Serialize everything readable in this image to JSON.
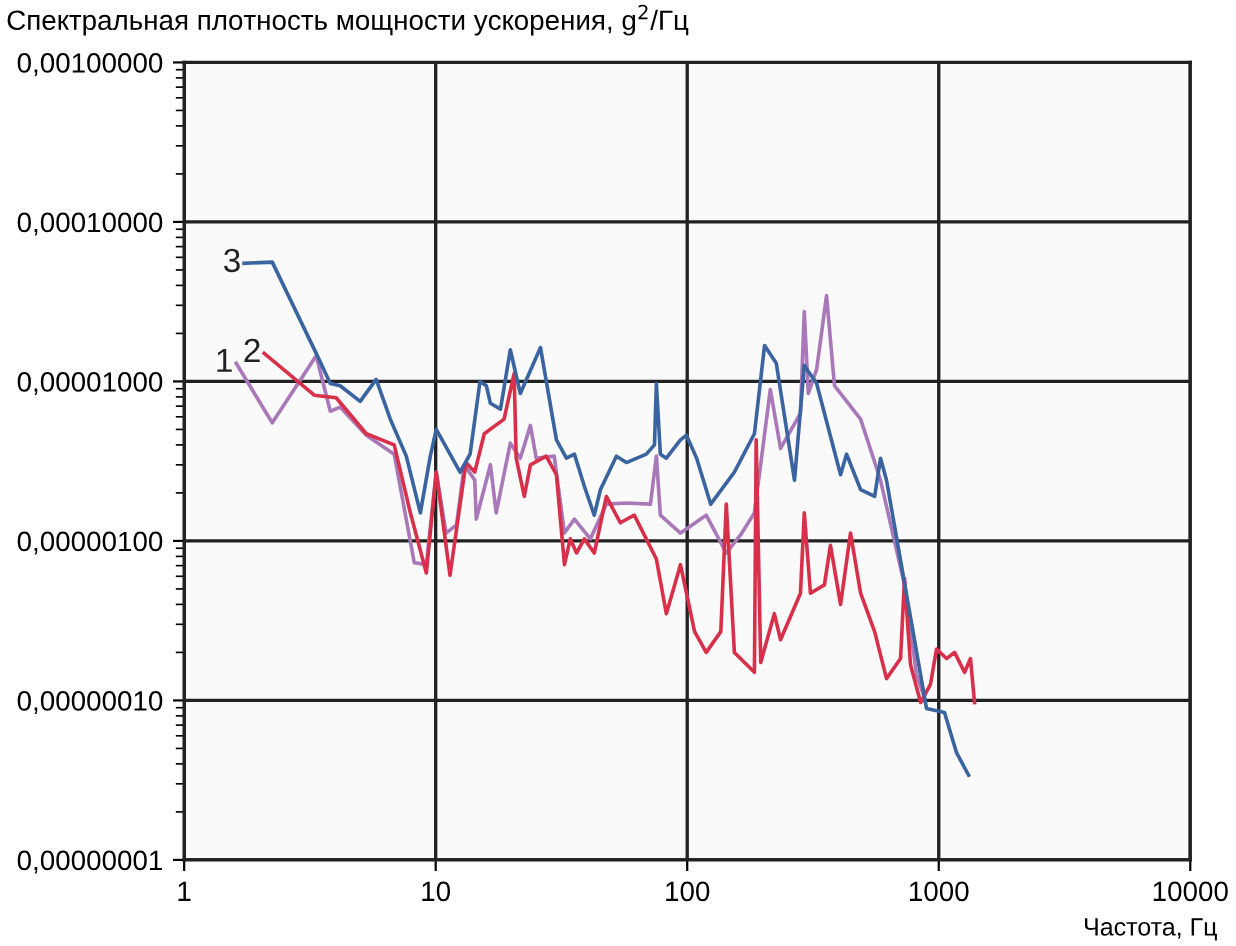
{
  "chart_data": {
    "type": "line",
    "title": "Спектральная плотность мощности ускорения, g$^{2}$/Гц",
    "xlabel": "Частота, Гц",
    "log": "xy",
    "grid": true,
    "legend": false,
    "marker": "none",
    "line_style": "solid",
    "xlim": [
      1,
      10000
    ],
    "xticks": [
      1,
      10,
      100,
      1000,
      10000
    ],
    "ylim": [
      1e-08,
      0.001
    ],
    "yticks": [
      {
        "value": 1e-08,
        "label": "0,00000001"
      },
      {
        "value": 1e-07,
        "label": "0,00000010"
      },
      {
        "value": 1e-06,
        "label": "0,00000100"
      },
      {
        "value": 1e-05,
        "label": "0,00001000"
      },
      {
        "value": 0.0001,
        "label": "0,00010000"
      },
      {
        "value": 0.001,
        "label": "0,00100000"
      }
    ],
    "series": [
      {
        "name": "1",
        "color": "#a878b8",
        "x": [
          1.61,
          2.24,
          3.35,
          3.81,
          4.17,
          5.3,
          6.84,
          8.22,
          9.18,
          10.05,
          11.0,
          12.1,
          13.0,
          14.3,
          14.5,
          16.5,
          17.4,
          19.8,
          21.7,
          23.8,
          25.1,
          29.6,
          32.5,
          35.6,
          41.2,
          47.7,
          57.3,
          71.4,
          75.4,
          78.2,
          94.0,
          119,
          143,
          163,
          185,
          214,
          235,
          282,
          292,
          303,
          327,
          358,
          385,
          489,
          587,
          731,
          816,
          879
        ],
        "values": [
          1.3e-05,
          5.5e-06,
          1.45e-05,
          6.5e-06,
          6.9e-06,
          4.6e-06,
          3.5e-06,
          7.3e-07,
          7.1e-07,
          2.7e-06,
          1.12e-06,
          1.26e-06,
          3e-06,
          2.4e-06,
          1.37e-06,
          3e-06,
          1.5e-06,
          4.1e-06,
          3.3e-06,
          5.3e-06,
          3.3e-06,
          3.4e-06,
          1.12e-06,
          1.37e-06,
          1.03e-06,
          1.7e-06,
          1.73e-06,
          1.7e-06,
          3.4e-06,
          1.45e-06,
          1.12e-06,
          1.45e-06,
          8.4e-07,
          1.09e-06,
          1.5e-06,
          8.9e-06,
          3.8e-06,
          6.3e-06,
          2.74e-05,
          8.4e-06,
          1.19e-05,
          3.45e-05,
          9.4e-06,
          5.8e-06,
          2.4e-06,
          5.3e-07,
          1.45e-07,
          1.03e-07
        ]
      },
      {
        "name": "2",
        "color": "#d8304a",
        "x": [
          2.08,
          3.29,
          4.02,
          5.3,
          6.84,
          7.93,
          9.18,
          10.05,
          11.4,
          13.2,
          14.3,
          15.6,
          18.7,
          20.5,
          20.9,
          22.5,
          23.8,
          27.5,
          30.2,
          32.5,
          34.3,
          36.3,
          39.0,
          42.7,
          47.7,
          54.2,
          61.6,
          75.4,
          82.6,
          94.0,
          107,
          119,
          136,
          143,
          154,
          185,
          188,
          196,
          222,
          235,
          282,
          292,
          309,
          351,
          371,
          407,
          446,
          489,
          556,
          620,
          705,
          731,
          772,
          847,
          927,
          980,
          1074,
          1156,
          1267,
          1337,
          1388
        ],
        "values": [
          1.5e-05,
          8.2e-06,
          7.9e-06,
          4.7e-06,
          4e-06,
          1.5e-06,
          6.3e-07,
          2.7e-06,
          6.1e-07,
          3.1e-06,
          2.7e-06,
          4.7e-06,
          5.8e-06,
          1.12e-05,
          3.3e-06,
          1.9e-06,
          3e-06,
          3.4e-06,
          2.6e-06,
          7.1e-07,
          1.03e-06,
          8.4e-07,
          1.03e-06,
          8.4e-07,
          1.9e-06,
          1.3e-06,
          1.45e-06,
          7.7e-07,
          3.5e-07,
          7.1e-07,
          2.7e-07,
          2e-07,
          2.7e-07,
          1.7e-06,
          2e-07,
          1.5e-07,
          4.3e-06,
          1.73e-07,
          3.5e-07,
          2.4e-07,
          4.7e-07,
          1.5e-06,
          4.7e-07,
          5.3e-07,
          9.4e-07,
          4e-07,
          1.12e-06,
          4.7e-07,
          2.7e-07,
          1.37e-07,
          1.83e-07,
          5.8e-07,
          1.68e-07,
          9.7e-08,
          1.26e-07,
          2.1e-07,
          1.83e-07,
          2e-07,
          1.5e-07,
          1.83e-07,
          9.7e-08
        ]
      },
      {
        "name": "3",
        "color": "#3a64a0",
        "x": [
          1.73,
          2.24,
          3.35,
          3.81,
          4.17,
          5.01,
          5.8,
          6.6,
          7.64,
          8.69,
          9.52,
          10.05,
          12.5,
          13.7,
          15.0,
          15.9,
          16.5,
          18.1,
          19.8,
          21.7,
          26.1,
          30.2,
          33.1,
          35.6,
          39.0,
          42.7,
          45.2,
          52.3,
          57.3,
          68.8,
          74.1,
          75.4,
          78.2,
          82.6,
          94.0,
          99.3,
          109,
          124,
          154,
          185,
          203,
          226,
          267,
          292,
          327,
          407,
          430,
          489,
          556,
          587,
          620,
          894,
          1054,
          1177,
          1314
        ],
        "values": [
          5.5e-05,
          5.6e-05,
          1.5e-05,
          9.7e-06,
          9.4e-06,
          7.5e-06,
          1.03e-05,
          5.8e-06,
          3.4e-06,
          1.5e-06,
          3.4e-06,
          5e-06,
          2.7e-06,
          3.5e-06,
          1e-05,
          9.4e-06,
          7.3e-06,
          6.7e-06,
          1.58e-05,
          8.4e-06,
          1.63e-05,
          4.3e-06,
          3.3e-06,
          3.5e-06,
          2.2e-06,
          1.45e-06,
          2.1e-06,
          3.4e-06,
          3.1e-06,
          3.5e-06,
          4e-06,
          9.7e-06,
          3.5e-06,
          3.3e-06,
          4.3e-06,
          4.6e-06,
          3.3e-06,
          1.7e-06,
          2.7e-06,
          4.7e-06,
          1.68e-05,
          1.3e-05,
          2.4e-06,
          1.26e-05,
          9.7e-06,
          2.6e-06,
          3.5e-06,
          2.1e-06,
          1.9e-06,
          3.3e-06,
          2.4e-06,
          8.9e-08,
          8.4e-08,
          4.7e-08,
          3.4e-08
        ]
      }
    ]
  }
}
